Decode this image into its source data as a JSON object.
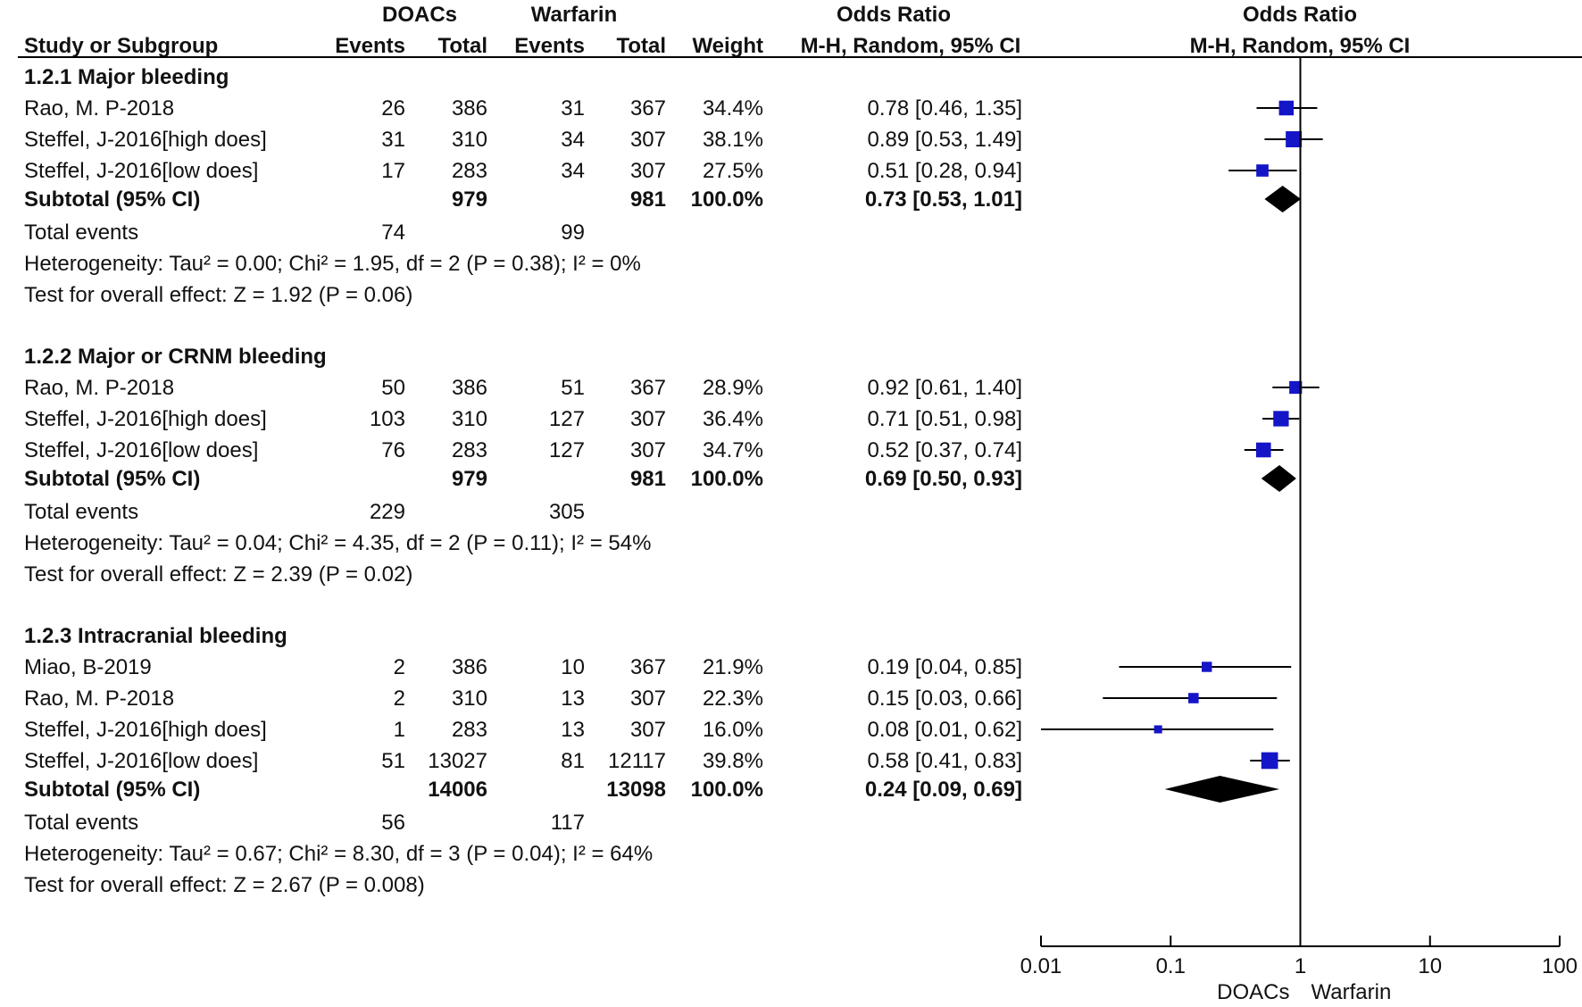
{
  "header": {
    "study_col": "Study or Subgroup",
    "group1": "DOACs",
    "group2": "Warfarin",
    "events": "Events",
    "total": "Total",
    "weight": "Weight",
    "or_title": "Odds Ratio",
    "or_method": "M-H, Random, 95% CI",
    "plot_title": "Odds Ratio",
    "plot_method": "M-H, Random, 95% CI"
  },
  "chart_data": {
    "type": "forest",
    "x_scale": "log",
    "xlim": [
      0.01,
      100
    ],
    "ticks": [
      {
        "value": 0.01,
        "label": "0.01"
      },
      {
        "value": 0.1,
        "label": "0.1"
      },
      {
        "value": 1,
        "label": "1"
      },
      {
        "value": 10,
        "label": "10"
      },
      {
        "value": 100,
        "label": "100"
      }
    ],
    "favours_left": "DOACs",
    "favours_right": "Warfarin",
    "square_color": "#1515c8",
    "diamond_color": "#000000",
    "subgroups": [
      {
        "title": "1.2.1 Major bleeding",
        "studies": [
          {
            "name": "Rao, M. P-2018",
            "e1": "26",
            "t1": "386",
            "e2": "31",
            "t2": "367",
            "weight": "34.4%",
            "ci_text": "0.78 [0.46, 1.35]",
            "or": 0.78,
            "lo": 0.46,
            "hi": 1.35
          },
          {
            "name": "Steffel, J-2016[high does]",
            "e1": "31",
            "t1": "310",
            "e2": "34",
            "t2": "307",
            "weight": "38.1%",
            "ci_text": "0.89 [0.53, 1.49]",
            "or": 0.89,
            "lo": 0.53,
            "hi": 1.49
          },
          {
            "name": "Steffel, J-2016[low does]",
            "e1": "17",
            "t1": "283",
            "e2": "34",
            "t2": "307",
            "weight": "27.5%",
            "ci_text": "0.51 [0.28, 0.94]",
            "or": 0.51,
            "lo": 0.28,
            "hi": 0.94
          }
        ],
        "subtotal": {
          "label": "Subtotal (95% CI)",
          "t1": "979",
          "t2": "981",
          "weight": "100.0%",
          "ci_text": "0.73 [0.53, 1.01]",
          "or": 0.73,
          "lo": 0.53,
          "hi": 1.01
        },
        "total_events": {
          "label": "Total events",
          "e1": "74",
          "e2": "99"
        },
        "heterogeneity": "Heterogeneity: Tau² = 0.00; Chi² = 1.95, df = 2 (P = 0.38); I² = 0%",
        "overall": "Test for overall effect: Z = 1.92 (P = 0.06)"
      },
      {
        "title": "1.2.2 Major or CRNM bleeding",
        "studies": [
          {
            "name": "Rao, M. P-2018",
            "e1": "50",
            "t1": "386",
            "e2": "51",
            "t2": "367",
            "weight": "28.9%",
            "ci_text": "0.92 [0.61, 1.40]",
            "or": 0.92,
            "lo": 0.61,
            "hi": 1.4
          },
          {
            "name": "Steffel, J-2016[high does]",
            "e1": "103",
            "t1": "310",
            "e2": "127",
            "t2": "307",
            "weight": "36.4%",
            "ci_text": "0.71 [0.51, 0.98]",
            "or": 0.71,
            "lo": 0.51,
            "hi": 0.98
          },
          {
            "name": "Steffel, J-2016[low does]",
            "e1": "76",
            "t1": "283",
            "e2": "127",
            "t2": "307",
            "weight": "34.7%",
            "ci_text": "0.52 [0.37, 0.74]",
            "or": 0.52,
            "lo": 0.37,
            "hi": 0.74
          }
        ],
        "subtotal": {
          "label": "Subtotal (95% CI)",
          "t1": "979",
          "t2": "981",
          "weight": "100.0%",
          "ci_text": "0.69 [0.50, 0.93]",
          "or": 0.69,
          "lo": 0.5,
          "hi": 0.93
        },
        "total_events": {
          "label": "Total events",
          "e1": "229",
          "e2": "305"
        },
        "heterogeneity": "Heterogeneity: Tau² = 0.04; Chi² = 4.35, df = 2 (P = 0.11); I² = 54%",
        "overall": "Test for overall effect: Z = 2.39 (P = 0.02)"
      },
      {
        "title": "1.2.3 Intracranial bleeding",
        "studies": [
          {
            "name": "Miao, B-2019",
            "e1": "2",
            "t1": "386",
            "e2": "10",
            "t2": "367",
            "weight": "21.9%",
            "ci_text": "0.19 [0.04, 0.85]",
            "or": 0.19,
            "lo": 0.04,
            "hi": 0.85
          },
          {
            "name": "Rao, M. P-2018",
            "e1": "2",
            "t1": "310",
            "e2": "13",
            "t2": "307",
            "weight": "22.3%",
            "ci_text": "0.15 [0.03, 0.66]",
            "or": 0.15,
            "lo": 0.03,
            "hi": 0.66
          },
          {
            "name": "Steffel, J-2016[high does]",
            "e1": "1",
            "t1": "283",
            "e2": "13",
            "t2": "307",
            "weight": "16.0%",
            "ci_text": "0.08 [0.01, 0.62]",
            "or": 0.08,
            "lo": 0.01,
            "hi": 0.62
          },
          {
            "name": "Steffel, J-2016[low does]",
            "e1": "51",
            "t1": "13027",
            "e2": "81",
            "t2": "12117",
            "weight": "39.8%",
            "ci_text": "0.58 [0.41, 0.83]",
            "or": 0.58,
            "lo": 0.41,
            "hi": 0.83
          }
        ],
        "subtotal": {
          "label": "Subtotal (95% CI)",
          "t1": "14006",
          "t2": "13098",
          "weight": "100.0%",
          "ci_text": "0.24 [0.09, 0.69]",
          "or": 0.24,
          "lo": 0.09,
          "hi": 0.69
        },
        "total_events": {
          "label": "Total events",
          "e1": "56",
          "e2": "117"
        },
        "heterogeneity": "Heterogeneity: Tau² = 0.67; Chi² = 8.30, df = 3 (P = 0.04); I² = 64%",
        "overall": "Test for overall effect: Z = 2.67 (P = 0.008)"
      }
    ]
  }
}
